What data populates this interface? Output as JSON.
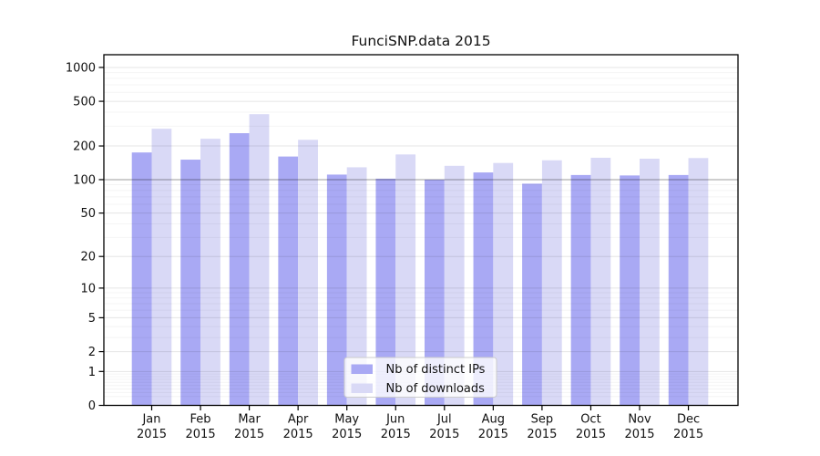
{
  "chart_data": {
    "type": "bar",
    "title": "FunciSNP.data 2015",
    "scale": "log10(value+1)",
    "grid": true,
    "legend_position": "bottom-center-inside",
    "categories": [
      "Jan",
      "Feb",
      "Mar",
      "Apr",
      "May",
      "Jun",
      "Jul",
      "Aug",
      "Sep",
      "Oct",
      "Nov",
      "Dec"
    ],
    "category_year": "2015",
    "series": [
      {
        "name": "Nb of distinct IPs",
        "color": "#a9a9f4",
        "values": [
          175,
          151,
          260,
          161,
          111,
          102,
          100,
          116,
          92,
          110,
          109,
          110
        ]
      },
      {
        "name": "Nb of downloads",
        "color": "#d9d9f6",
        "values": [
          285,
          232,
          384,
          227,
          129,
          168,
          133,
          141,
          149,
          157,
          154,
          156
        ]
      }
    ],
    "y_ticks": [
      1000,
      500,
      200,
      100,
      50,
      20,
      10,
      5,
      2,
      1,
      0
    ],
    "ylim": [
      0,
      1260
    ],
    "emphasized_gridline": 100,
    "xlabel": "",
    "ylabel": ""
  },
  "colors": {
    "distinct_ips_bar": "#a9a9f4",
    "downloads_bar": "#d9d9f6",
    "frame": "#000000",
    "grid_major": "#e6e6e6",
    "grid_minor": "#f4f4f4",
    "grid_emphasized": "#b0b0b0"
  }
}
